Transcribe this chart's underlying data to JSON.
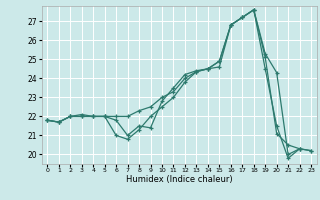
{
  "bg_color": "#cce9e9",
  "grid_color": "#ffffff",
  "line_color": "#2d7a6e",
  "xlabel": "Humidex (Indice chaleur)",
  "xlim": [
    -0.5,
    23.5
  ],
  "ylim": [
    19.5,
    27.8
  ],
  "yticks": [
    20,
    21,
    22,
    23,
    24,
    25,
    26,
    27
  ],
  "xticks": [
    0,
    1,
    2,
    3,
    4,
    5,
    6,
    7,
    8,
    9,
    10,
    11,
    12,
    13,
    14,
    15,
    16,
    17,
    18,
    19,
    20,
    21,
    22,
    23
  ],
  "line1_y": [
    21.8,
    21.7,
    22.0,
    22.1,
    22.0,
    22.0,
    21.8,
    21.0,
    21.5,
    21.4,
    22.8,
    23.5,
    24.2,
    24.4,
    24.5,
    24.6,
    26.8,
    27.2,
    27.6,
    25.3,
    24.3,
    20.0,
    20.3,
    null
  ],
  "line2_y": [
    21.8,
    21.7,
    22.0,
    22.0,
    22.0,
    22.0,
    22.0,
    22.0,
    22.3,
    22.5,
    23.0,
    23.3,
    24.0,
    24.35,
    24.5,
    24.9,
    26.8,
    27.2,
    27.6,
    25.1,
    21.1,
    20.5,
    20.3,
    20.2
  ],
  "line3_y": [
    21.8,
    21.7,
    22.0,
    22.0,
    22.0,
    22.0,
    21.0,
    20.8,
    21.3,
    22.0,
    22.5,
    23.0,
    23.8,
    24.35,
    24.5,
    24.9,
    26.8,
    27.2,
    27.6,
    24.5,
    21.5,
    19.8,
    20.3,
    20.2
  ]
}
